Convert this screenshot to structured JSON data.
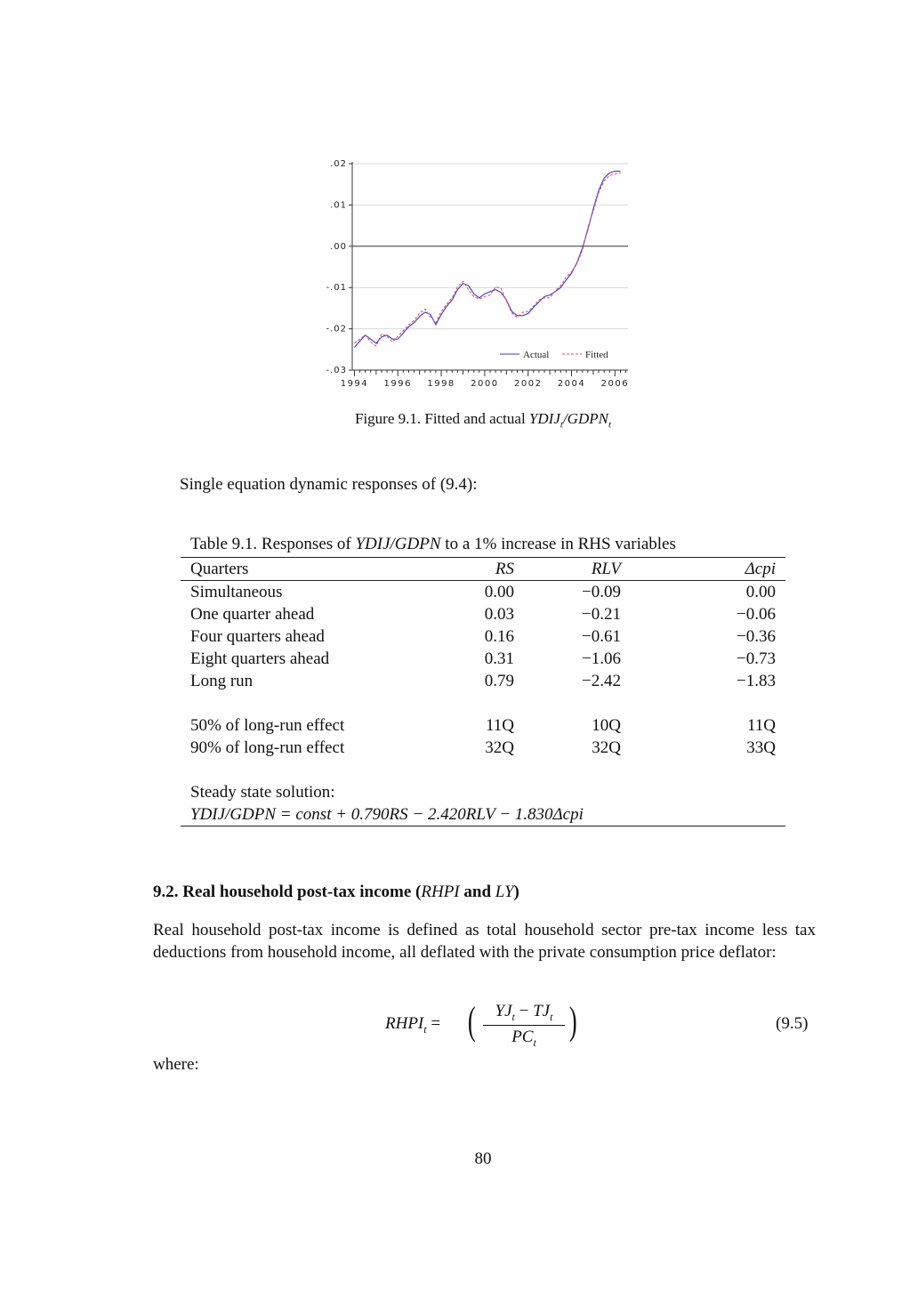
{
  "chart_data": {
    "type": "line",
    "title": "",
    "xlabel": "",
    "ylabel": "",
    "x_ticks": [
      "1994",
      "1996",
      "1998",
      "2000",
      "2002",
      "2004",
      "2006"
    ],
    "y_ticks": [
      ".02",
      ".01",
      ".00",
      "-.01",
      "-.02",
      "-.03"
    ],
    "ylim": [
      -0.03,
      0.02
    ],
    "xlim": [
      1993.9,
      2006.6
    ],
    "grid": true,
    "legend_position": "bottom-right",
    "series": [
      {
        "name": "Actual",
        "color": "#3b3bbf",
        "style": "solid",
        "x": [
          1994.0,
          1994.25,
          1994.5,
          1994.75,
          1995.0,
          1995.25,
          1995.5,
          1995.75,
          1996.0,
          1996.25,
          1996.5,
          1996.75,
          1997.0,
          1997.25,
          1997.5,
          1997.75,
          1998.0,
          1998.25,
          1998.5,
          1998.75,
          1999.0,
          1999.25,
          1999.5,
          1999.75,
          2000.0,
          2000.25,
          2000.5,
          2000.75,
          2001.0,
          2001.25,
          2001.5,
          2001.75,
          2002.0,
          2002.25,
          2002.5,
          2002.75,
          2003.0,
          2003.25,
          2003.5,
          2003.75,
          2004.0,
          2004.25,
          2004.5,
          2004.75,
          2005.0,
          2005.25,
          2005.5,
          2005.75,
          2006.0,
          2006.25
        ],
        "y": [
          -0.0245,
          -0.023,
          -0.0215,
          -0.0225,
          -0.0235,
          -0.022,
          -0.0215,
          -0.0225,
          -0.0225,
          -0.021,
          -0.0195,
          -0.0185,
          -0.017,
          -0.016,
          -0.0165,
          -0.019,
          -0.0165,
          -0.0145,
          -0.013,
          -0.0105,
          -0.009,
          -0.0095,
          -0.0115,
          -0.0125,
          -0.0115,
          -0.011,
          -0.0105,
          -0.0112,
          -0.013,
          -0.0158,
          -0.0168,
          -0.0168,
          -0.0163,
          -0.0148,
          -0.0135,
          -0.0122,
          -0.0118,
          -0.011,
          -0.01,
          -0.0082,
          -0.0065,
          -0.004,
          -0.0005,
          0.004,
          0.009,
          0.0135,
          0.0165,
          0.0178,
          0.0182,
          0.0182
        ]
      },
      {
        "name": "Fitted",
        "color": "#e0507a",
        "style": "dashed",
        "x": [
          1994.0,
          1994.25,
          1994.5,
          1994.75,
          1995.0,
          1995.25,
          1995.5,
          1995.75,
          1996.0,
          1996.25,
          1996.5,
          1996.75,
          1997.0,
          1997.25,
          1997.5,
          1997.75,
          1998.0,
          1998.25,
          1998.5,
          1998.75,
          1999.0,
          1999.25,
          1999.5,
          1999.75,
          2000.0,
          2000.25,
          2000.5,
          2000.75,
          2001.0,
          2001.25,
          2001.5,
          2001.75,
          2002.0,
          2002.25,
          2002.5,
          2002.75,
          2003.0,
          2003.25,
          2003.5,
          2003.75,
          2004.0,
          2004.25,
          2004.5,
          2004.75,
          2005.0,
          2005.25,
          2005.5,
          2005.75,
          2006.0,
          2006.25
        ],
        "y": [
          -0.0235,
          -0.0225,
          -0.0215,
          -0.0232,
          -0.0242,
          -0.0212,
          -0.0218,
          -0.0232,
          -0.0218,
          -0.0205,
          -0.019,
          -0.018,
          -0.0162,
          -0.0152,
          -0.0172,
          -0.0185,
          -0.0158,
          -0.014,
          -0.0125,
          -0.0098,
          -0.0085,
          -0.0105,
          -0.0122,
          -0.0128,
          -0.0122,
          -0.0118,
          -0.0098,
          -0.0102,
          -0.0132,
          -0.0162,
          -0.0172,
          -0.016,
          -0.0158,
          -0.0145,
          -0.013,
          -0.0125,
          -0.0125,
          -0.0108,
          -0.0095,
          -0.0075,
          -0.0062,
          -0.0042,
          -0.001,
          0.0045,
          0.0085,
          0.013,
          0.0158,
          0.0172,
          0.0175,
          0.0178
        ]
      }
    ]
  },
  "figure": {
    "caption_prefix": "Figure 9.1. Fitted and actual ",
    "caption_math": "YDIJ",
    "caption_sub": "t",
    "caption_mid": "/GDPN",
    "caption_sub2": "t"
  },
  "intro_text": "Single equation dynamic responses of (9.4):",
  "table": {
    "title_prefix": "Table 9.1. Responses of ",
    "title_math": "YDIJ/GDPN",
    "title_suffix": " to a 1% increase in RHS variables",
    "headers": [
      "Quarters",
      "RS",
      "RLV",
      "Δcpi"
    ],
    "rows": [
      [
        "Simultaneous",
        "0.00",
        "−0.09",
        "0.00"
      ],
      [
        "One quarter ahead",
        "0.03",
        "−0.21",
        "−0.06"
      ],
      [
        "Four quarters ahead",
        "0.16",
        "−0.61",
        "−0.36"
      ],
      [
        "Eight quarters ahead",
        "0.31",
        "−1.06",
        "−0.73"
      ],
      [
        "Long run",
        "0.79",
        "−2.42",
        "−1.83"
      ]
    ],
    "effect_rows": [
      [
        "50% of long-run effect",
        "11Q",
        "10Q",
        "11Q"
      ],
      [
        "90% of long-run effect",
        "32Q",
        "32Q",
        "33Q"
      ]
    ],
    "steady_label": "Steady state solution:",
    "steady_equation": "YDIJ/GDPN = const + 0.790RS − 2.420RLV − 1.830Δcpi"
  },
  "section": {
    "heading_prefix": "9.2. Real household post-tax income (",
    "heading_m1": "RHPI",
    "heading_and": " and ",
    "heading_m2": "LY",
    "heading_suffix": ")",
    "paragraph": "Real household post-tax income is defined as total household sector pre-tax income less tax deductions from household income, all deflated with the private consumption price deflator:"
  },
  "equation": {
    "lhs": "RHPI",
    "lhs_sub": "t",
    "num_a": "YJ",
    "num_a_sub": "t",
    "num_b": "TJ",
    "num_b_sub": "t",
    "den": "PC",
    "den_sub": "t",
    "number": "(9.5)"
  },
  "where_text": "where:",
  "page_number": "80"
}
